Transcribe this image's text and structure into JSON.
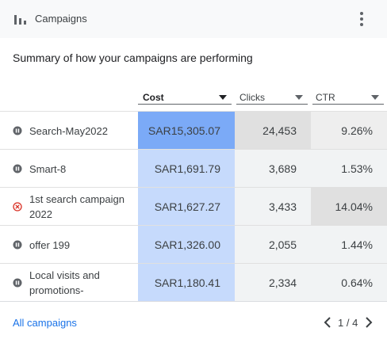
{
  "header": {
    "title": "Campaigns"
  },
  "subtitle": "Summary of how your campaigns are performing",
  "table": {
    "columns": [
      "Cost",
      "Clicks",
      "CTR"
    ],
    "rows": [
      [
        "Search-May2022",
        "SAR15,305.07",
        "24,453",
        "9.26%"
      ],
      [
        "Smart-8",
        "SAR1,691.79",
        "3,689",
        "1.53%"
      ],
      [
        "1st search campaign 2022",
        "SAR1,627.27",
        "3,433",
        "14.04%"
      ],
      [
        "offer 199",
        "SAR1,326.00",
        "2,055",
        "1.44%"
      ],
      [
        "Local visits and promotions-",
        "SAR1,180.41",
        "2,334",
        "0.64%"
      ]
    ]
  },
  "footer": {
    "link": "All campaigns",
    "pager": "1 / 4"
  }
}
